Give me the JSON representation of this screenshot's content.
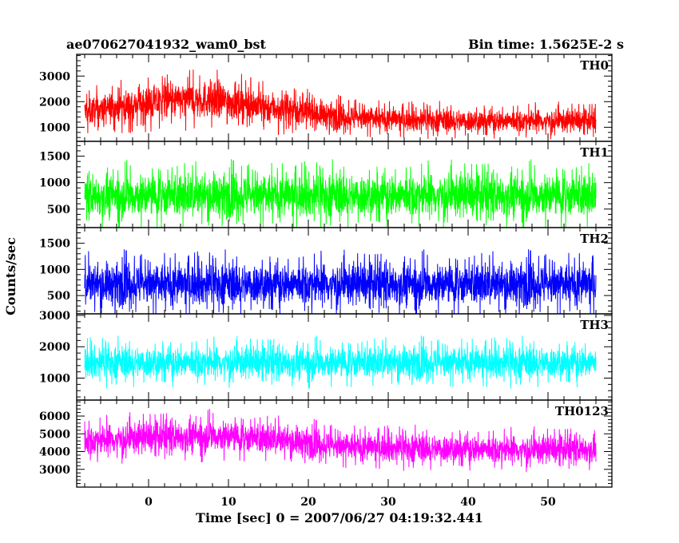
{
  "header": {
    "title": "ae070627041932_wam0_bst",
    "bin_time": "Bin time: 1.5625E-2 s"
  },
  "xlabel": "Time [sec] 0 = 2007/06/27 04:19:32.441",
  "ylabel": "Counts/sec",
  "chart_data": [
    {
      "type": "line",
      "name": "TH0",
      "color": "#ff0000",
      "xlim": [
        -9,
        58
      ],
      "ylim": [
        450,
        3850
      ],
      "yticks": [
        1000,
        2000,
        3000
      ],
      "x": [
        -8,
        0,
        8,
        16,
        24,
        32,
        40,
        48,
        56
      ],
      "y": [
        1600,
        1950,
        2100,
        1750,
        1400,
        1300,
        1250,
        1250,
        1250
      ],
      "spread": [
        500,
        600,
        650,
        550,
        450,
        400,
        400,
        400,
        400
      ]
    },
    {
      "type": "line",
      "name": "TH1",
      "color": "#00ff00",
      "xlim": [
        -9,
        58
      ],
      "ylim": [
        150,
        1780
      ],
      "yticks": [
        500,
        1000,
        1500
      ],
      "x": [
        -8,
        0,
        8,
        16,
        24,
        32,
        40,
        48,
        56
      ],
      "y": [
        750,
        760,
        760,
        760,
        760,
        760,
        760,
        760,
        760
      ],
      "spread": [
        350,
        360,
        360,
        360,
        360,
        360,
        360,
        360,
        360
      ]
    },
    {
      "type": "line",
      "name": "TH2",
      "color": "#0000ff",
      "xlim": [
        -9,
        58
      ],
      "ylim": [
        150,
        1800
      ],
      "yticks": [
        500,
        1000,
        1500
      ],
      "x": [
        -8,
        0,
        8,
        16,
        24,
        32,
        40,
        48,
        56
      ],
      "y": [
        720,
        720,
        720,
        720,
        720,
        720,
        720,
        720,
        720
      ],
      "spread": [
        350,
        350,
        350,
        350,
        350,
        350,
        350,
        350,
        350
      ]
    },
    {
      "type": "line",
      "name": "TH3",
      "color": "#00ffff",
      "xlim": [
        -9,
        58
      ],
      "ylim": [
        300,
        3050
      ],
      "yticks": [
        1000,
        2000,
        3000
      ],
      "x": [
        -8,
        0,
        8,
        16,
        24,
        32,
        40,
        48,
        56
      ],
      "y": [
        1500,
        1500,
        1500,
        1500,
        1500,
        1500,
        1500,
        1500,
        1500
      ],
      "spread": [
        450,
        450,
        450,
        450,
        450,
        450,
        450,
        450,
        450
      ]
    },
    {
      "type": "line",
      "name": "TH0123",
      "color": "#ff00ff",
      "xlim": [
        -9,
        58
      ],
      "ylim": [
        2000,
        6900
      ],
      "yticks": [
        3000,
        4000,
        5000,
        6000
      ],
      "x": [
        -8,
        0,
        8,
        16,
        24,
        32,
        40,
        48,
        56
      ],
      "y": [
        4600,
        4800,
        4900,
        4700,
        4300,
        4200,
        4150,
        4100,
        4150
      ],
      "spread": [
        750,
        800,
        800,
        750,
        700,
        700,
        700,
        700,
        700
      ]
    }
  ],
  "xticks": [
    0,
    10,
    20,
    30,
    40,
    50
  ]
}
